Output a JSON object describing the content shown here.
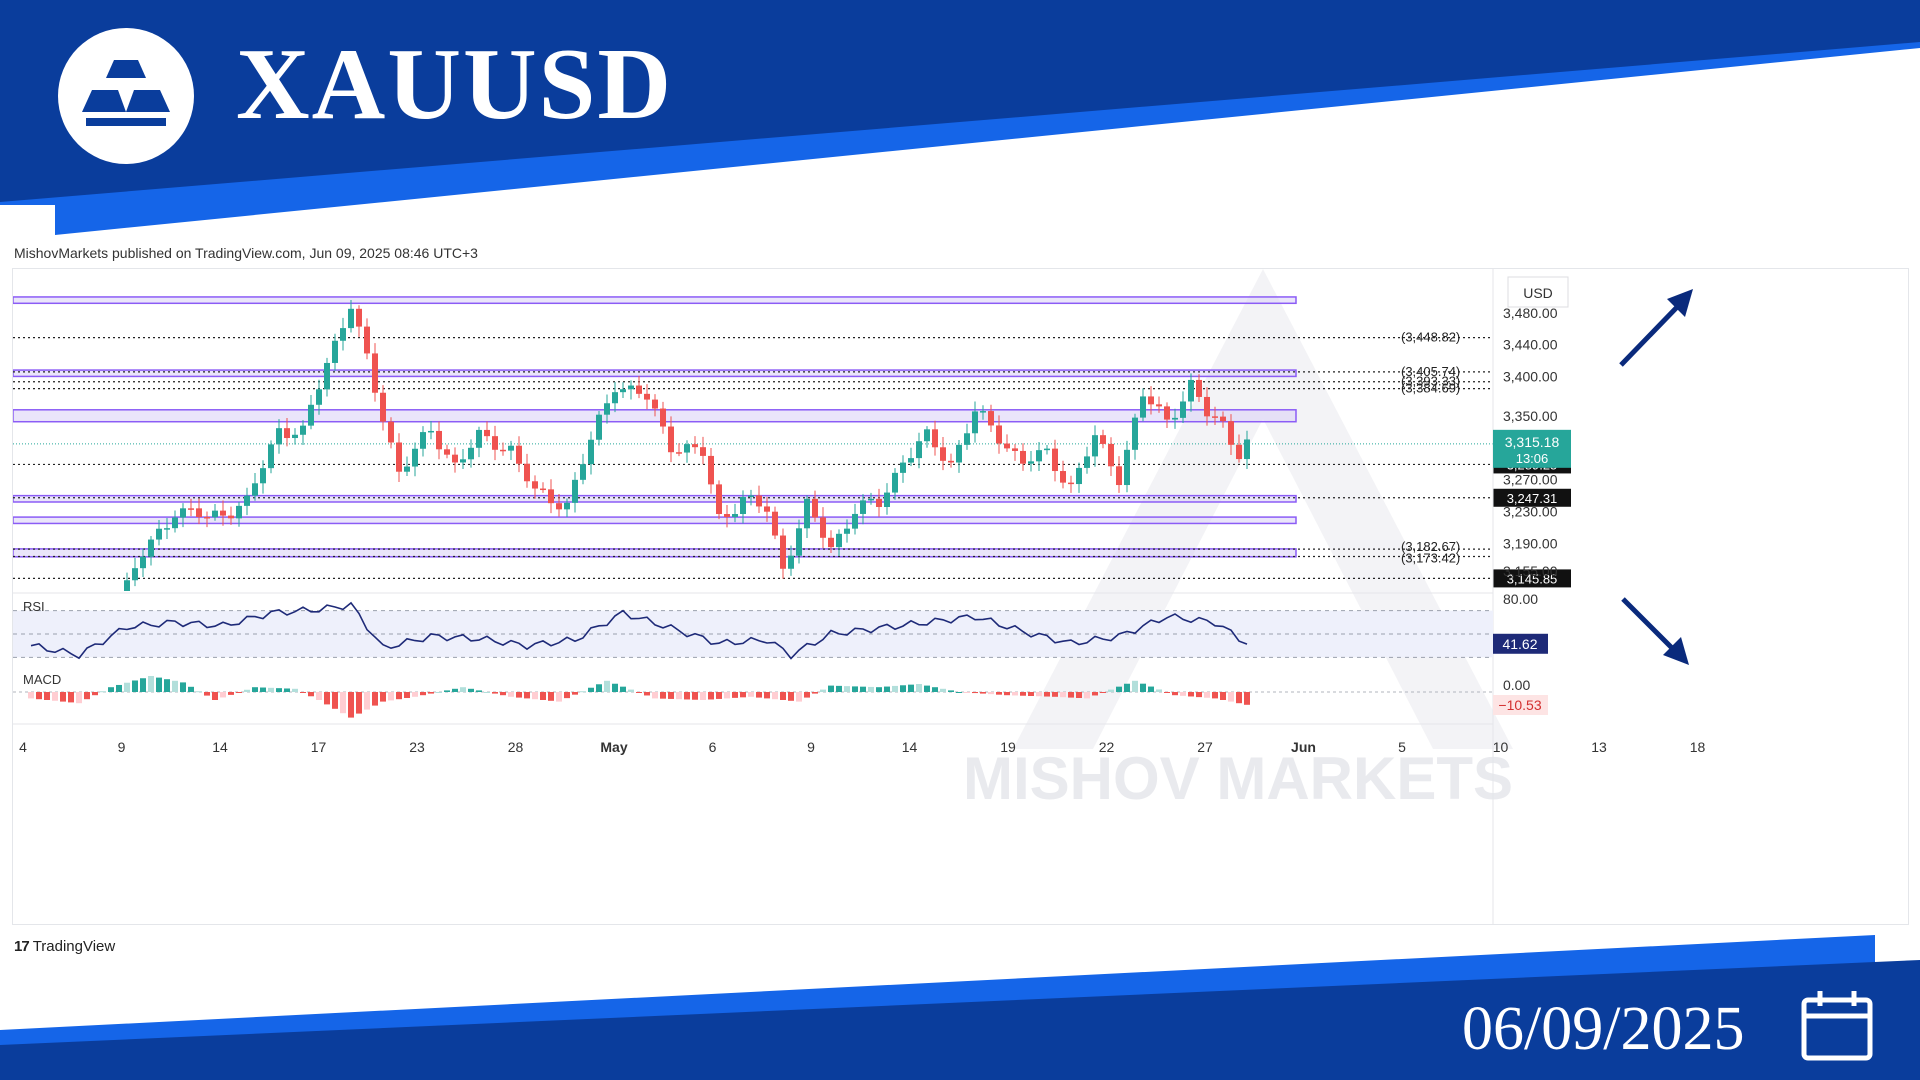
{
  "header": {
    "ticker": "XAUUSD",
    "logo_icon": "gold-bars-icon"
  },
  "publisher": "MishovMarkets published on TradingView.com, Jun 09, 2025 08:46 UTC+3",
  "footer": {
    "tv_logo": "TradingView",
    "tv_logo_mark": "17",
    "date": "06/09/2025",
    "calendar_icon": "calendar-icon"
  },
  "watermark": "MISHOV  MARKETS",
  "colors": {
    "brand_blue": "#0a3d9c",
    "bull": "#26a69a",
    "bear": "#ef5350",
    "zone_fill": "#d9d0f5",
    "zone_border": "#8b5cf6",
    "arrow": "#0a2a7c"
  },
  "chart_data": {
    "type": "candlestick",
    "currency": "USD",
    "ylim": [
      3130,
      3510
    ],
    "y_ticks": [
      "3,480.00",
      "3,440.00",
      "3,400.00",
      "3,350.00",
      "3,270.00",
      "3,230.00",
      "3,190.00",
      "3,155.00"
    ],
    "x_ticks": [
      "4",
      "9",
      "14",
      "17",
      "23",
      "28",
      "May",
      "6",
      "9",
      "14",
      "19",
      "22",
      "27",
      "Jun",
      "5",
      "10",
      "13",
      "18"
    ],
    "price_label": {
      "value": "3,315.18",
      "countdown": "13:06"
    },
    "level_labels": [
      {
        "text": "3,289.25",
        "value": 3289.25
      },
      {
        "text": "3,247.31",
        "value": 3247.31
      },
      {
        "text": "3,145.85",
        "value": 3145.85
      }
    ],
    "dotted_levels": [
      {
        "text": "(3,448.82)",
        "value": 3448.82
      },
      {
        "text": "(3,405.74)",
        "value": 3405.74
      },
      {
        "text": "(3,393.33)",
        "value": 3393.33
      },
      {
        "text": "(3,384.69)",
        "value": 3384.69
      },
      {
        "text": "(3,182.67)",
        "value": 3182.67
      },
      {
        "text": "(3,173.42)",
        "value": 3173.42
      }
    ],
    "zones": [
      {
        "low": 3492,
        "high": 3500
      },
      {
        "low": 3400,
        "high": 3408
      },
      {
        "low": 3343,
        "high": 3358
      },
      {
        "low": 3242,
        "high": 3250
      },
      {
        "low": 3215,
        "high": 3223
      },
      {
        "low": 3173,
        "high": 3183
      }
    ],
    "close_path": [
      {
        "t": 0,
        "v": 3085
      },
      {
        "t": 10,
        "v": 3100
      },
      {
        "t": 14,
        "v": 3175
      },
      {
        "t": 18,
        "v": 3232
      },
      {
        "t": 22,
        "v": 3222
      },
      {
        "t": 27,
        "v": 3240
      },
      {
        "t": 31,
        "v": 3335
      },
      {
        "t": 34,
        "v": 3328
      },
      {
        "t": 37,
        "v": 3418
      },
      {
        "t": 40,
        "v": 3492
      },
      {
        "t": 43,
        "v": 3382
      },
      {
        "t": 46,
        "v": 3282
      },
      {
        "t": 50,
        "v": 3330
      },
      {
        "t": 53,
        "v": 3290
      },
      {
        "t": 56,
        "v": 3322
      },
      {
        "t": 60,
        "v": 3310
      },
      {
        "t": 63,
        "v": 3252
      },
      {
        "t": 67,
        "v": 3240
      },
      {
        "t": 70,
        "v": 3318
      },
      {
        "t": 73,
        "v": 3392
      },
      {
        "t": 77,
        "v": 3372
      },
      {
        "t": 80,
        "v": 3315
      },
      {
        "t": 84,
        "v": 3302
      },
      {
        "t": 86,
        "v": 3222
      },
      {
        "t": 89,
        "v": 3245
      },
      {
        "t": 92,
        "v": 3232
      },
      {
        "t": 94,
        "v": 3160
      },
      {
        "t": 97,
        "v": 3235
      },
      {
        "t": 100,
        "v": 3185
      },
      {
        "t": 103,
        "v": 3232
      },
      {
        "t": 106,
        "v": 3240
      },
      {
        "t": 109,
        "v": 3295
      },
      {
        "t": 112,
        "v": 3322
      },
      {
        "t": 115,
        "v": 3292
      },
      {
        "t": 118,
        "v": 3355
      },
      {
        "t": 121,
        "v": 3325
      },
      {
        "t": 124,
        "v": 3292
      },
      {
        "t": 127,
        "v": 3302
      },
      {
        "t": 130,
        "v": 3262
      },
      {
        "t": 133,
        "v": 3322
      },
      {
        "t": 136,
        "v": 3275
      },
      {
        "t": 139,
        "v": 3375
      },
      {
        "t": 142,
        "v": 3345
      },
      {
        "t": 145,
        "v": 3388
      },
      {
        "t": 147,
        "v": 3352
      },
      {
        "t": 149,
        "v": 3340
      },
      {
        "t": 151,
        "v": 3305
      },
      {
        "t": 152,
        "v": 3315
      }
    ],
    "candle_count": 153,
    "rsi": {
      "label": "RSI",
      "value": "41.62",
      "tick": "80.00",
      "levels": [
        70,
        50,
        30
      ],
      "path": [
        {
          "t": 0,
          "v": 40
        },
        {
          "t": 6,
          "v": 32
        },
        {
          "t": 12,
          "v": 56
        },
        {
          "t": 18,
          "v": 60
        },
        {
          "t": 24,
          "v": 57
        },
        {
          "t": 30,
          "v": 68
        },
        {
          "t": 36,
          "v": 71
        },
        {
          "t": 40,
          "v": 75
        },
        {
          "t": 44,
          "v": 38
        },
        {
          "t": 50,
          "v": 48
        },
        {
          "t": 56,
          "v": 46
        },
        {
          "t": 62,
          "v": 40
        },
        {
          "t": 68,
          "v": 45
        },
        {
          "t": 74,
          "v": 68
        },
        {
          "t": 80,
          "v": 55
        },
        {
          "t": 86,
          "v": 42
        },
        {
          "t": 92,
          "v": 45
        },
        {
          "t": 95,
          "v": 32
        },
        {
          "t": 100,
          "v": 50
        },
        {
          "t": 106,
          "v": 55
        },
        {
          "t": 112,
          "v": 60
        },
        {
          "t": 118,
          "v": 65
        },
        {
          "t": 124,
          "v": 52
        },
        {
          "t": 130,
          "v": 42
        },
        {
          "t": 136,
          "v": 48
        },
        {
          "t": 142,
          "v": 65
        },
        {
          "t": 148,
          "v": 60
        },
        {
          "t": 152,
          "v": 42
        }
      ]
    },
    "macd": {
      "label": "MACD",
      "value": "−10.53",
      "tick": "0.00",
      "path": [
        {
          "t": 0,
          "v": -4
        },
        {
          "t": 6,
          "v": -7
        },
        {
          "t": 10,
          "v": 3
        },
        {
          "t": 15,
          "v": 10
        },
        {
          "t": 19,
          "v": 6
        },
        {
          "t": 23,
          "v": -5
        },
        {
          "t": 28,
          "v": 3
        },
        {
          "t": 33,
          "v": 2
        },
        {
          "t": 36,
          "v": -5
        },
        {
          "t": 40,
          "v": -16
        },
        {
          "t": 44,
          "v": -6
        },
        {
          "t": 48,
          "v": -3
        },
        {
          "t": 54,
          "v": 3
        },
        {
          "t": 60,
          "v": -3
        },
        {
          "t": 66,
          "v": -6
        },
        {
          "t": 72,
          "v": 7
        },
        {
          "t": 78,
          "v": -4
        },
        {
          "t": 84,
          "v": -5
        },
        {
          "t": 90,
          "v": -3
        },
        {
          "t": 96,
          "v": -6
        },
        {
          "t": 100,
          "v": 4
        },
        {
          "t": 106,
          "v": 3
        },
        {
          "t": 111,
          "v": 5
        },
        {
          "t": 116,
          "v": 0
        },
        {
          "t": 122,
          "v": -2
        },
        {
          "t": 128,
          "v": -3
        },
        {
          "t": 132,
          "v": -4
        },
        {
          "t": 138,
          "v": 7
        },
        {
          "t": 143,
          "v": -2
        },
        {
          "t": 148,
          "v": -4
        },
        {
          "t": 152,
          "v": -8
        }
      ]
    }
  }
}
